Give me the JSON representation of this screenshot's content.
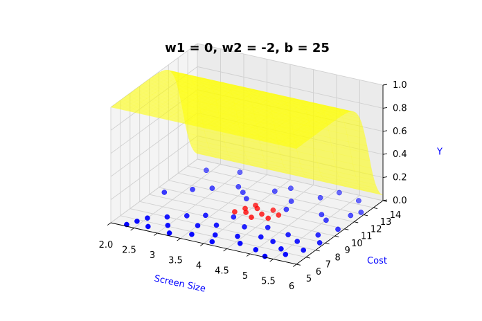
{
  "chart_data": {
    "type": "scatter",
    "projection": "3d",
    "title": "w1 = 0, w2 = -2, b = 25",
    "xlabel": "Screen Size",
    "ylabel": "Cost",
    "zlabel": "Y",
    "xlim": [
      2.0,
      6.0
    ],
    "ylim": [
      5,
      14
    ],
    "zlim": [
      0.0,
      1.0
    ],
    "xticks": [
      "2.0",
      "2.5",
      "3",
      "3.5",
      "4",
      "4.5",
      "5",
      "5.5",
      "6"
    ],
    "yticks": [
      "5",
      "6",
      "7",
      "8",
      "9",
      "10",
      "11",
      "12",
      "13",
      "14"
    ],
    "zticks": [
      "0.0",
      "0.2",
      "0.4",
      "0.6",
      "0.8",
      "1.0"
    ],
    "grid": true,
    "surface": {
      "formula": "sigmoid(w1*x + w2*y + b)",
      "w1": 0,
      "w2": -2,
      "b": 25,
      "color": "#ffff00"
    },
    "series": [
      {
        "color": "#0000ff",
        "points": [
          [
            2.3,
            5.2,
            0
          ],
          [
            2.4,
            5.8,
            0
          ],
          [
            2.5,
            6.4,
            0
          ],
          [
            2.7,
            5.5,
            0
          ],
          [
            2.8,
            7.0,
            0
          ],
          [
            3.0,
            6.1,
            0
          ],
          [
            3.1,
            7.6,
            0
          ],
          [
            3.2,
            5.3,
            0
          ],
          [
            3.4,
            8.1,
            0
          ],
          [
            3.5,
            6.8,
            0
          ],
          [
            3.6,
            5.7,
            0
          ],
          [
            3.8,
            7.3,
            0
          ],
          [
            3.9,
            8.6,
            0
          ],
          [
            4.0,
            6.2,
            0
          ],
          [
            4.1,
            5.4,
            0
          ],
          [
            4.3,
            7.8,
            0
          ],
          [
            4.4,
            6.6,
            0
          ],
          [
            4.6,
            5.9,
            0
          ],
          [
            4.7,
            8.3,
            0
          ],
          [
            4.8,
            7.1,
            0
          ],
          [
            5.0,
            5.6,
            0
          ],
          [
            5.1,
            6.9,
            0
          ],
          [
            5.2,
            8.0,
            0
          ],
          [
            5.4,
            6.3,
            0
          ],
          [
            5.5,
            7.5,
            0
          ],
          [
            5.6,
            5.8,
            0
          ],
          [
            5.7,
            8.7,
            0
          ],
          [
            5.8,
            6.7,
            0
          ],
          [
            5.9,
            7.9,
            0
          ],
          [
            5.3,
            5.1,
            0
          ],
          [
            2.6,
            10.6,
            0
          ],
          [
            2.9,
            11.2,
            0
          ],
          [
            3.3,
            12.0,
            0
          ],
          [
            3.7,
            10.9,
            0
          ],
          [
            4.2,
            13.1,
            0
          ],
          [
            4.5,
            11.7,
            0
          ],
          [
            4.9,
            12.8,
            0
          ],
          [
            5.3,
            11.0,
            0
          ],
          [
            5.6,
            13.4,
            0
          ],
          [
            5.9,
            12.2,
            0
          ],
          [
            2.4,
            13.0,
            0
          ],
          [
            3.0,
            13.6,
            0
          ],
          [
            3.5,
            11.5,
            0
          ],
          [
            4.0,
            12.4,
            0
          ],
          [
            4.6,
            10.7,
            0
          ],
          [
            5.1,
            13.8,
            0
          ],
          [
            5.5,
            10.5,
            0
          ],
          [
            5.8,
            11.6,
            0
          ],
          [
            2.2,
            9.6,
            0
          ],
          [
            5.9,
            9.8,
            0
          ]
        ]
      },
      {
        "color": "#ff0000",
        "points": [
          [
            3.8,
            9.2,
            0
          ],
          [
            3.9,
            9.8,
            0
          ],
          [
            4.0,
            9.4,
            0
          ],
          [
            4.1,
            10.1,
            0
          ],
          [
            4.2,
            9.0,
            0
          ],
          [
            4.3,
            9.6,
            0
          ],
          [
            4.4,
            10.3,
            0
          ],
          [
            4.5,
            9.3,
            0
          ],
          [
            4.0,
            10.4,
            0
          ],
          [
            4.6,
            9.9,
            0
          ]
        ]
      }
    ]
  }
}
